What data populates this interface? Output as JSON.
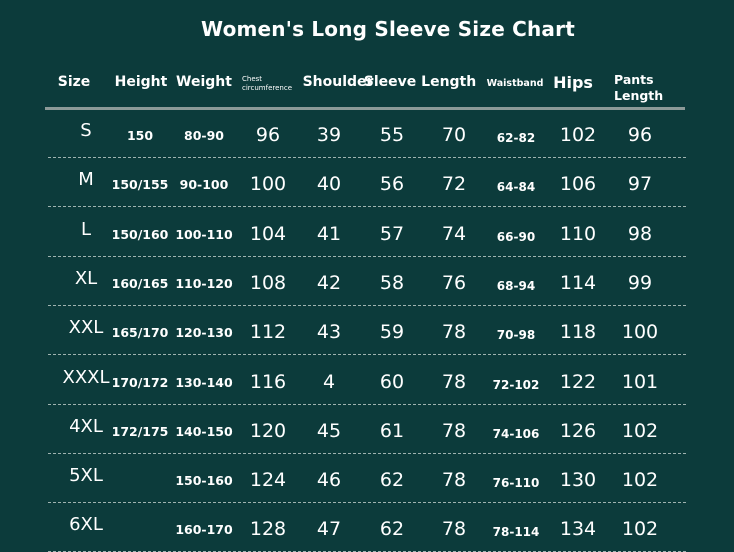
{
  "title": "Women's Long Sleeve Size Chart",
  "colors": {
    "background": "#0c3b3b",
    "text": "#ffffff",
    "rule": "#8c9a98"
  },
  "headers": {
    "size": "Size",
    "height": "Height",
    "weight": "Weight",
    "chest_line1": "Chest",
    "chest_line2": "circumference",
    "shoulder": "Shoulder",
    "sleeve_length": "Sleeve Length",
    "waistband": "Waistband",
    "hips": "Hips",
    "pants_line1": "Pants",
    "pants_line2": "Length"
  },
  "rows": [
    {
      "size": "S",
      "height": "150",
      "weight": "80-90",
      "chest": "96",
      "shoulder": "39",
      "sleeve": "55",
      "length": "70",
      "waistband": "62-82",
      "hips": "102",
      "pants": "96"
    },
    {
      "size": "M",
      "height": "150/155",
      "weight": "90-100",
      "chest": "100",
      "shoulder": "40",
      "sleeve": "56",
      "length": "72",
      "waistband": "64-84",
      "hips": "106",
      "pants": "97"
    },
    {
      "size": "L",
      "height": "150/160",
      "weight": "100-110",
      "chest": "104",
      "shoulder": "41",
      "sleeve": "57",
      "length": "74",
      "waistband": "66-90",
      "hips": "110",
      "pants": "98"
    },
    {
      "size": "XL",
      "height": "160/165",
      "weight": "110-120",
      "chest": "108",
      "shoulder": "42",
      "sleeve": "58",
      "length": "76",
      "waistband": "68-94",
      "hips": "114",
      "pants": "99"
    },
    {
      "size": "XXL",
      "height": "165/170",
      "weight": "120-130",
      "chest": "112",
      "shoulder": "43",
      "sleeve": "59",
      "length": "78",
      "waistband": "70-98",
      "hips": "118",
      "pants": "100"
    },
    {
      "size": "XXXL",
      "height": "170/172",
      "weight": "130-140",
      "chest": "116",
      "shoulder": "4",
      "sleeve": "60",
      "length": "78",
      "waistband": "72-102",
      "hips": "122",
      "pants": "101"
    },
    {
      "size": "4XL",
      "height": "172/175",
      "weight": "140-150",
      "chest": "120",
      "shoulder": "45",
      "sleeve": "61",
      "length": "78",
      "waistband": "74-106",
      "hips": "126",
      "pants": "102"
    },
    {
      "size": "5XL",
      "height": "",
      "weight": "150-160",
      "chest": "124",
      "shoulder": "46",
      "sleeve": "62",
      "length": "78",
      "waistband": "76-110",
      "hips": "130",
      "pants": "102"
    },
    {
      "size": "6XL",
      "height": "",
      "weight": "160-170",
      "chest": "128",
      "shoulder": "47",
      "sleeve": "62",
      "length": "78",
      "waistband": "78-114",
      "hips": "134",
      "pants": "102"
    }
  ]
}
